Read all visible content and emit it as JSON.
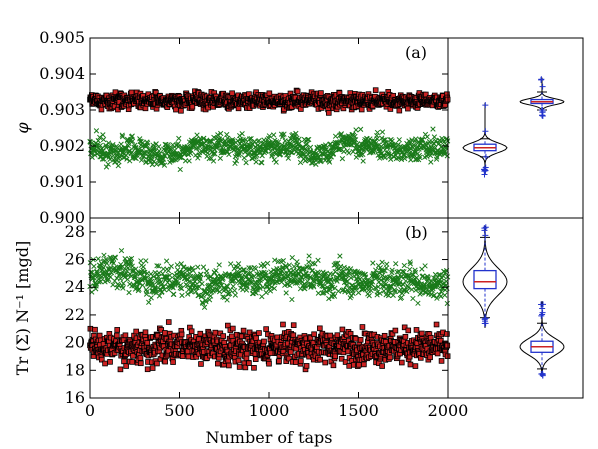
{
  "chart_data": [
    {
      "panel": "(a)",
      "type": "scatter",
      "ylabel": "φ",
      "ylim": [
        0.9,
        0.905
      ],
      "yticks": [
        "0.900",
        "0.901",
        "0.902",
        "0.903",
        "0.904",
        "0.905"
      ],
      "xlim": [
        0,
        2000
      ],
      "grid": false,
      "series": [
        {
          "marker": "square",
          "color": "#cc2222",
          "edge": "#000000",
          "mean": 0.90325,
          "spread": 0.00015,
          "min": 0.9028,
          "max": 0.9039
        },
        {
          "marker": "x",
          "color": "#1a7a1a",
          "mean": 0.90195,
          "spread": 0.0003,
          "min": 0.9013,
          "max": 0.9031
        }
      ],
      "violins": [
        {
          "position": "left",
          "median": 0.90195,
          "q1": 0.90187,
          "q3": 0.90205,
          "whisker_low": 0.9017,
          "whisker_high": 0.9022,
          "min": 0.9012,
          "max": 0.9032
        },
        {
          "position": "right",
          "median": 0.90323,
          "q1": 0.90318,
          "q3": 0.90329,
          "whisker_low": 0.903,
          "whisker_high": 0.9035,
          "min": 0.9028,
          "max": 0.9039
        }
      ]
    },
    {
      "panel": "(b)",
      "type": "scatter",
      "ylabel": "Tr (Σ) N⁻¹ [mgd]",
      "ylim": [
        16,
        29
      ],
      "yticks": [
        "16",
        "18",
        "20",
        "22",
        "24",
        "26",
        "28"
      ],
      "xlabel": "Number of taps",
      "xlim": [
        0,
        2000
      ],
      "xticks": [
        "0",
        "500",
        "1000",
        "1500",
        "2000"
      ],
      "grid": false,
      "series": [
        {
          "marker": "square",
          "color": "#cc2222",
          "edge": "#000000",
          "mean": 19.7,
          "spread": 0.85,
          "min": 17.2,
          "max": 22.6
        },
        {
          "marker": "x",
          "color": "#1a7a1a",
          "mean": 24.6,
          "spread": 1.05,
          "min": 21.4,
          "max": 28.2
        }
      ],
      "violins": [
        {
          "position": "left",
          "median": 24.4,
          "q1": 23.9,
          "q3": 25.2,
          "whisker_low": 21.8,
          "whisker_high": 27.6,
          "min": 21.1,
          "max": 28.4
        },
        {
          "position": "right",
          "median": 19.7,
          "q1": 19.3,
          "q3": 20.1,
          "whisker_low": 18.1,
          "whisker_high": 21.4,
          "min": 17.6,
          "max": 23.0
        }
      ]
    }
  ]
}
